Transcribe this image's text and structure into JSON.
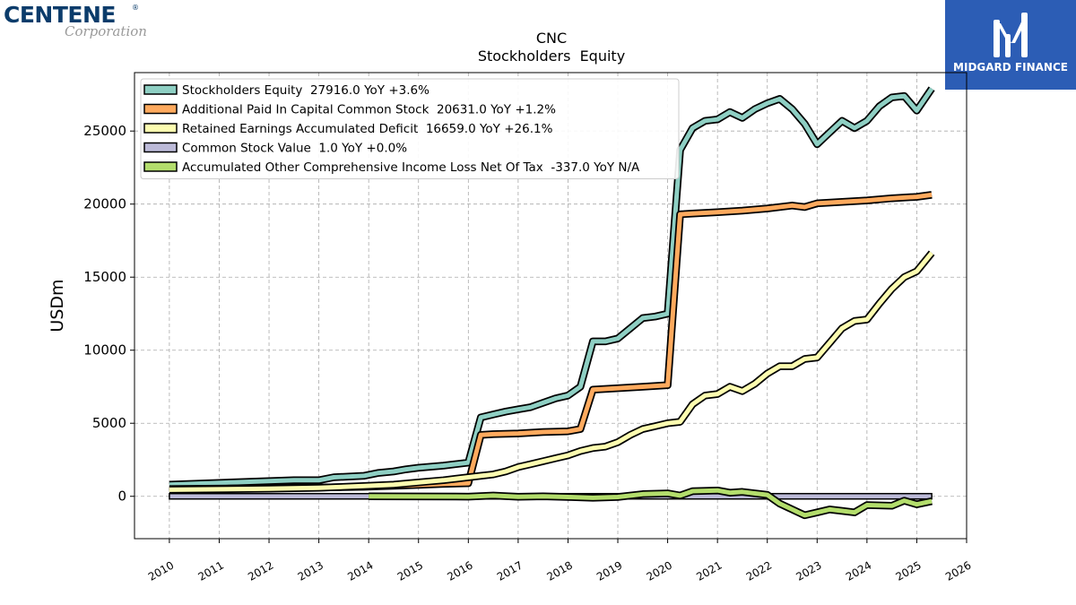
{
  "logos": {
    "left": {
      "name": "CENTENE",
      "sub": "Corporation",
      "mark": "®"
    },
    "right": {
      "name": "MIDGARD FINANCE",
      "icon": "midgard-m-icon"
    }
  },
  "chart_data": {
    "type": "line",
    "title": "CNC",
    "subtitle": "Stockholders  Equity",
    "ylabel": "USDm",
    "xlabel": "",
    "xlim": [
      2009.3,
      2026.0
    ],
    "ylim": [
      -2900,
      29000
    ],
    "x_ticks": [
      "2010",
      "2011",
      "2012",
      "2013",
      "2014",
      "2015",
      "2016",
      "2017",
      "2018",
      "2019",
      "2020",
      "2021",
      "2022",
      "2023",
      "2024",
      "2025",
      "2026"
    ],
    "y_ticks": [
      0,
      5000,
      10000,
      15000,
      20000,
      25000
    ],
    "grid": true,
    "legend_position": "top-left",
    "series": [
      {
        "name": "Stockholders Equity  27916.0 YoY +3.6%",
        "color": "#8ecfc3",
        "x": [
          2010.0,
          2012.5,
          2013.0,
          2013.3,
          2013.9,
          2014.2,
          2014.5,
          2014.75,
          2015.0,
          2015.5,
          2016.0,
          2016.25,
          2016.5,
          2016.75,
          2017.0,
          2017.25,
          2017.5,
          2017.75,
          2018.0,
          2018.25,
          2018.5,
          2018.75,
          2019.0,
          2019.25,
          2019.5,
          2019.75,
          2020.0,
          2020.25,
          2020.5,
          2020.75,
          2021.0,
          2021.25,
          2021.5,
          2021.75,
          2022.0,
          2022.25,
          2022.5,
          2022.75,
          2023.0,
          2023.25,
          2023.5,
          2023.75,
          2024.0,
          2024.25,
          2024.5,
          2024.75,
          2025.0,
          2025.3
        ],
        "y": [
          800,
          1100,
          1100,
          1300,
          1400,
          1600,
          1700,
          1850,
          1950,
          2100,
          2300,
          5400,
          5600,
          5800,
          5950,
          6100,
          6400,
          6700,
          6900,
          7500,
          10600,
          10600,
          10800,
          11500,
          12200,
          12300,
          12500,
          23700,
          25200,
          25700,
          25800,
          26300,
          25900,
          26500,
          26900,
          27200,
          26500,
          25500,
          24100,
          24900,
          25700,
          25200,
          25700,
          26700,
          27300,
          27400,
          26400,
          27900
        ]
      },
      {
        "name": "Additional Paid In Capital Common Stock  20631.0 YoY +1.2%",
        "color": "#ffaa5e",
        "x": [
          2010.0,
          2012.0,
          2013.0,
          2013.9,
          2014.5,
          2015.0,
          2015.5,
          2016.0,
          2016.25,
          2016.5,
          2017.0,
          2017.5,
          2018.0,
          2018.25,
          2018.5,
          2019.0,
          2019.5,
          2020.0,
          2020.25,
          2020.5,
          2021.0,
          2021.5,
          2022.0,
          2022.5,
          2022.75,
          2023.0,
          2023.5,
          2024.0,
          2024.5,
          2025.0,
          2025.3
        ],
        "y": [
          500,
          560,
          600,
          650,
          720,
          780,
          850,
          900,
          4200,
          4250,
          4300,
          4400,
          4450,
          4600,
          7300,
          7400,
          7500,
          7600,
          19300,
          19350,
          19450,
          19550,
          19700,
          19900,
          19800,
          20050,
          20150,
          20250,
          20400,
          20500,
          20631
        ]
      },
      {
        "name": "Retained Earnings Accumulated Deficit  16659.0 YoY +26.1%",
        "color": "#fdfdb0",
        "x": [
          2010.0,
          2012.0,
          2013.0,
          2013.9,
          2014.5,
          2015.0,
          2015.5,
          2016.0,
          2016.25,
          2016.5,
          2016.75,
          2017.0,
          2017.25,
          2017.5,
          2017.75,
          2018.0,
          2018.25,
          2018.5,
          2018.75,
          2019.0,
          2019.25,
          2019.5,
          2019.75,
          2020.0,
          2020.25,
          2020.5,
          2020.75,
          2021.0,
          2021.25,
          2021.5,
          2021.75,
          2022.0,
          2022.25,
          2022.5,
          2022.75,
          2023.0,
          2023.25,
          2023.5,
          2023.75,
          2024.0,
          2024.25,
          2024.5,
          2024.75,
          2025.0,
          2025.3
        ],
        "y": [
          450,
          520,
          580,
          700,
          800,
          950,
          1100,
          1300,
          1400,
          1500,
          1700,
          2000,
          2200,
          2400,
          2600,
          2800,
          3100,
          3300,
          3400,
          3700,
          4200,
          4600,
          4800,
          5000,
          5100,
          6300,
          6900,
          7000,
          7500,
          7200,
          7700,
          8400,
          8900,
          8900,
          9400,
          9500,
          10500,
          11500,
          12000,
          12100,
          13200,
          14200,
          15000,
          15400,
          16659
        ]
      },
      {
        "name": "Common Stock Value  1.0 YoY +0.0%",
        "color": "#bcbad8",
        "x": [
          2010.0,
          2025.3
        ],
        "y": [
          1,
          1
        ]
      },
      {
        "name": "Accumulated Other Comprehensive Income Loss Net Of Tax  -337.0 YoY N/A",
        "color": "#b3dd6c",
        "x": [
          2014.0,
          2016.0,
          2016.5,
          2017.0,
          2017.5,
          2018.0,
          2018.5,
          2019.0,
          2019.5,
          2020.0,
          2020.25,
          2020.5,
          2021.0,
          2021.25,
          2021.5,
          2022.0,
          2022.25,
          2022.5,
          2022.75,
          2023.0,
          2023.25,
          2023.5,
          2023.75,
          2024.0,
          2024.5,
          2024.75,
          2025.0,
          2025.3
        ],
        "y": [
          0,
          -20,
          50,
          -30,
          0,
          -50,
          -100,
          -50,
          150,
          200,
          50,
          350,
          400,
          250,
          300,
          100,
          -500,
          -900,
          -1300,
          -1100,
          -900,
          -1000,
          -1100,
          -600,
          -650,
          -300,
          -550,
          -337
        ]
      }
    ]
  }
}
